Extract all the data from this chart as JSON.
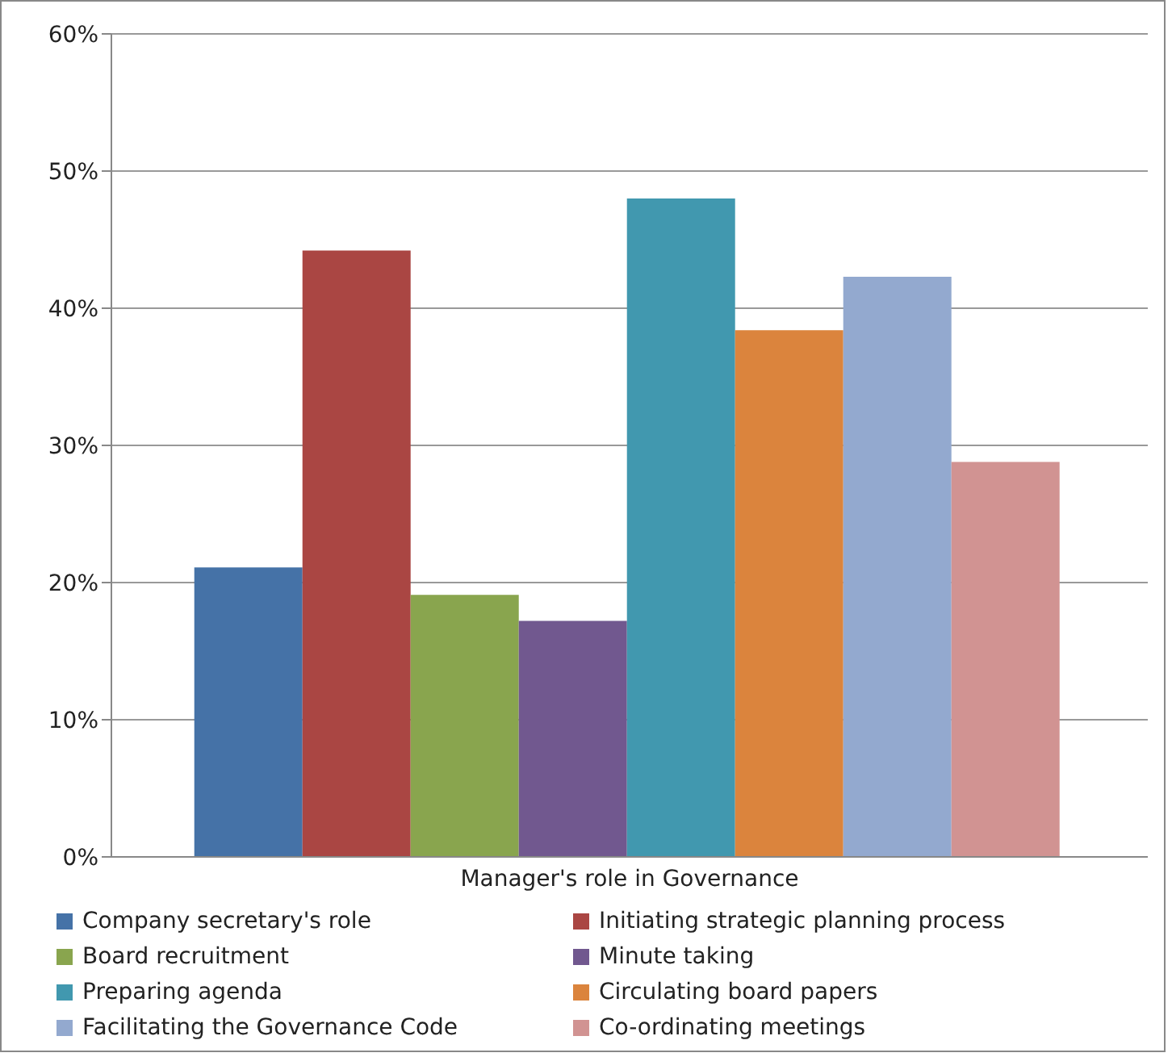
{
  "chart_data": {
    "type": "bar",
    "categories": [
      "Manager's role in Governance"
    ],
    "series": [
      {
        "name": "Company secretary's role",
        "color": "#4572a7",
        "values": [
          21.1
        ]
      },
      {
        "name": "Initiating strategic planning process",
        "color": "#aa4643",
        "values": [
          44.2
        ]
      },
      {
        "name": "Board recruitment",
        "color": "#89a54e",
        "values": [
          19.1
        ]
      },
      {
        "name": "Minute taking",
        "color": "#71588f",
        "values": [
          17.2
        ]
      },
      {
        "name": "Preparing agenda",
        "color": "#4198af",
        "values": [
          48.0
        ]
      },
      {
        "name": "Circulating board papers",
        "color": "#db843d",
        "values": [
          38.4
        ]
      },
      {
        "name": "Facilitating the Governance Code",
        "color": "#93a9cf",
        "values": [
          42.3
        ]
      },
      {
        "name": "Co-ordinating meetings",
        "color": "#d19392",
        "values": [
          28.8
        ]
      }
    ],
    "ylim": [
      0,
      60
    ],
    "yticks": [
      {
        "value": 0,
        "label": "0%"
      },
      {
        "value": 10,
        "label": "10%"
      },
      {
        "value": 20,
        "label": "20%"
      },
      {
        "value": 30,
        "label": "30%"
      },
      {
        "value": 40,
        "label": "40%"
      },
      {
        "value": 50,
        "label": "50%"
      },
      {
        "value": 60,
        "label": "60%"
      }
    ],
    "grid": "y",
    "legend": "bottom"
  }
}
